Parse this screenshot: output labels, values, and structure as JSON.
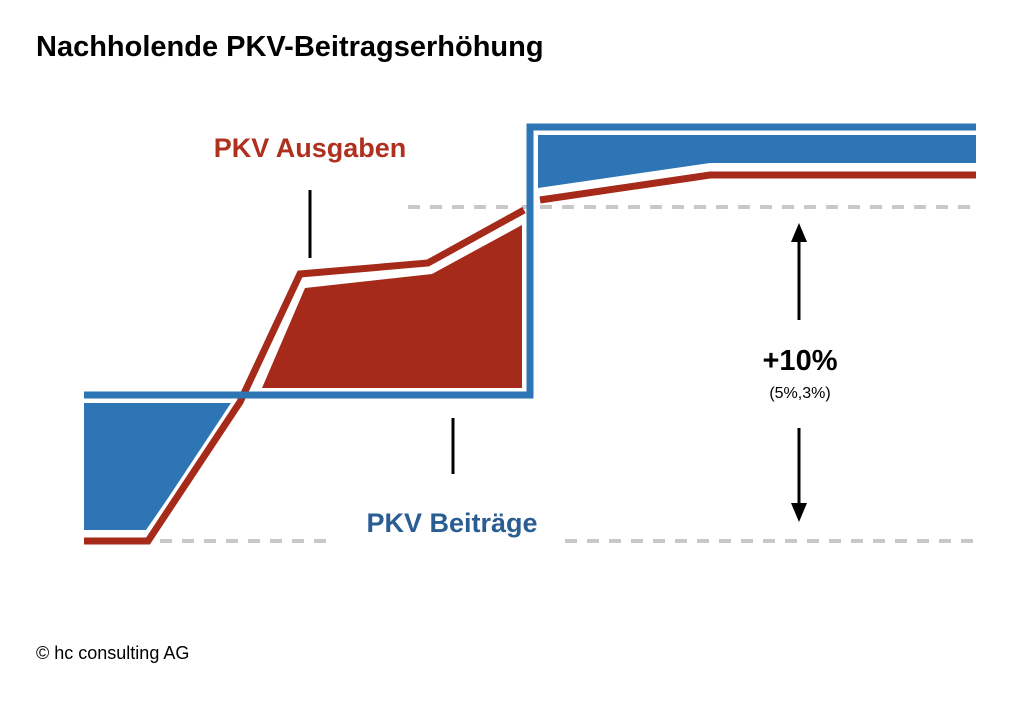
{
  "header": {
    "title": "Nachholende PKV-Beitragserhöhung"
  },
  "labels": {
    "ausgaben": "PKV Ausgaben",
    "beitraege": "PKV Beiträge",
    "change": "+10%",
    "change_detail": "(5%,3%)"
  },
  "footer": {
    "copyright": "© hc consulting AG"
  }
}
